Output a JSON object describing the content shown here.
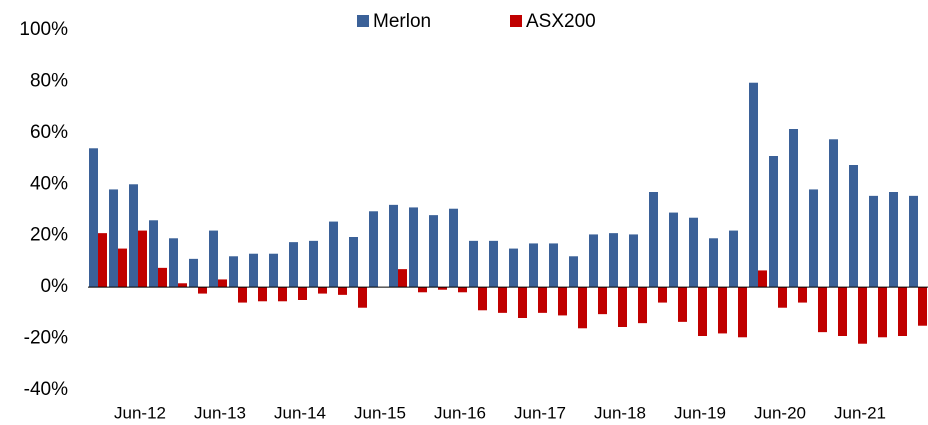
{
  "chart_data": {
    "type": "bar",
    "categories": [
      null,
      null,
      "Jun-12",
      null,
      null,
      null,
      "Jun-13",
      null,
      null,
      null,
      "Jun-14",
      null,
      null,
      null,
      "Jun-15",
      null,
      null,
      null,
      "Jun-16",
      null,
      null,
      null,
      "Jun-17",
      null,
      null,
      null,
      "Jun-18",
      null,
      null,
      null,
      "Jun-19",
      null,
      null,
      null,
      "Jun-20",
      null,
      null,
      null,
      "Jun-21",
      null,
      null,
      null
    ],
    "series": [
      {
        "name": "Merlon",
        "color": "#3b6198",
        "values": [
          54,
          38,
          40,
          26,
          19,
          11,
          22,
          12,
          13,
          13,
          17.5,
          18,
          25.5,
          19.5,
          29.5,
          32,
          31,
          28,
          30.5,
          18,
          18,
          15,
          17,
          17,
          12,
          20.5,
          21,
          20.5,
          37,
          29,
          27,
          19,
          22,
          79.5,
          51,
          61.5,
          38,
          57.5,
          47.5,
          35.5,
          37,
          35.5
        ]
      },
      {
        "name": "ASX200",
        "color": "#c00000",
        "values": [
          21,
          15,
          22,
          7.5,
          1.5,
          -2.5,
          3,
          -6,
          -5.5,
          -5.5,
          -5,
          -2.5,
          -3,
          -8,
          0,
          7,
          -2,
          -1,
          -2,
          -9,
          -10,
          -12,
          -10,
          -11,
          -16,
          -10.5,
          -15.5,
          -14,
          -6,
          -13.5,
          -19,
          -18,
          -19.5,
          6.5,
          -8,
          -6,
          -17.5,
          -19,
          -22,
          -19.5,
          -19,
          -15
        ]
      }
    ],
    "ylim": [
      -40,
      100
    ],
    "yticks": [
      {
        "value": -40,
        "label": "-40%"
      },
      {
        "value": -20,
        "label": "-20%"
      },
      {
        "value": 0,
        "label": "0%"
      },
      {
        "value": 20,
        "label": "20%"
      },
      {
        "value": 40,
        "label": "40%"
      },
      {
        "value": 60,
        "label": "60%"
      },
      {
        "value": 80,
        "label": "80%"
      },
      {
        "value": 100,
        "label": "100%"
      }
    ],
    "grid": false,
    "legend": "top"
  }
}
